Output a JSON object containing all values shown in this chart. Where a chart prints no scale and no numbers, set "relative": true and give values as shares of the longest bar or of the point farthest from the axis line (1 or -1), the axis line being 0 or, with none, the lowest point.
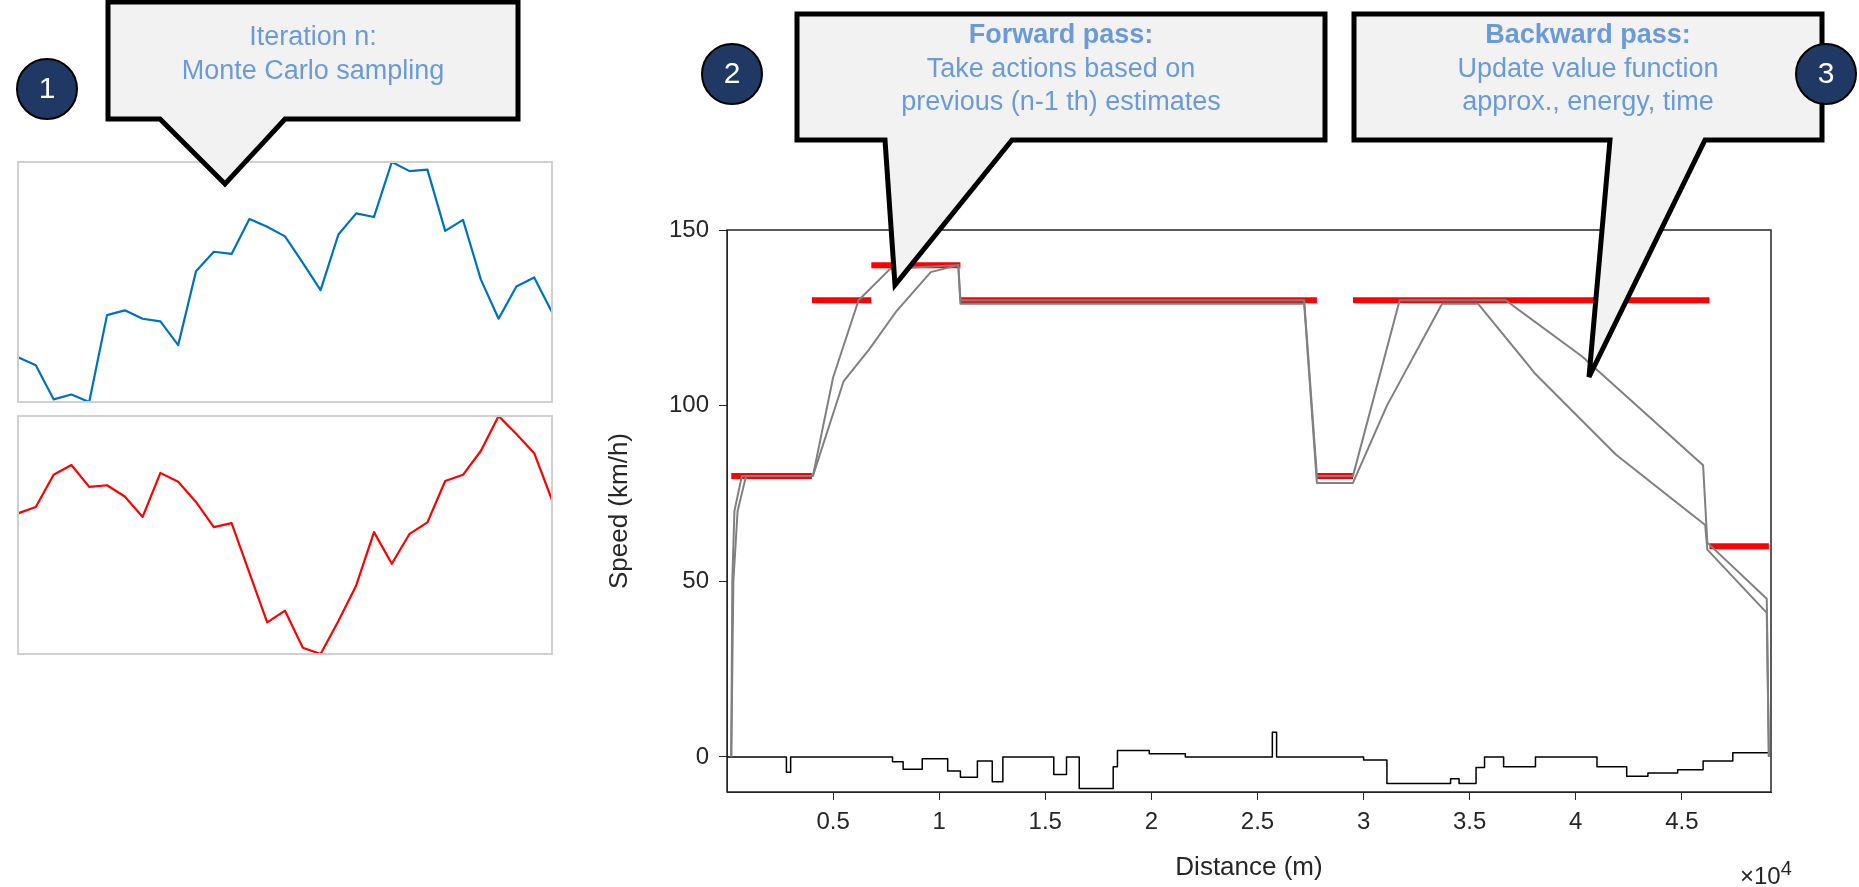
{
  "chart_data": [
    {
      "type": "line",
      "relative": true,
      "tick_labels": false,
      "grid": false,
      "categories": [
        null,
        null,
        null,
        null,
        null,
        null,
        null,
        null,
        null,
        null,
        null,
        null,
        null,
        null,
        null,
        null,
        null,
        null,
        null,
        null,
        null,
        null,
        null,
        null,
        null,
        null,
        null,
        null,
        null,
        null,
        null
      ],
      "annotations": [
        "1",
        "Iteration n:",
        "Monte Carlo sampling"
      ],
      "series": [
        {
          "color": "#0072bd",
          "values": [
            0.186,
            0.153,
            0.011,
            0.031,
            0,
            0.362,
            0.382,
            0.347,
            0.336,
            0.237,
            0.545,
            0.626,
            0.617,
            0.763,
            0.73,
            0.69,
            0.58,
            0.466,
            0.698,
            0.786,
            0.771,
            1,
            0.962,
            0.968,
            0.713,
            0.759,
            0.511,
            0.347,
            0.481,
            0.519,
            0.374
          ]
        }
      ]
    },
    {
      "type": "line",
      "relative": true,
      "tick_labels": false,
      "grid": false,
      "categories": [
        null,
        null,
        null,
        null,
        null,
        null,
        null,
        null,
        null,
        null,
        null,
        null,
        null,
        null,
        null,
        null,
        null,
        null,
        null,
        null,
        null,
        null,
        null,
        null,
        null,
        null,
        null,
        null,
        null,
        null,
        null
      ],
      "series": [
        {
          "color": "#ff0000",
          "values": [
            0.591,
            0.618,
            0.753,
            0.794,
            0.702,
            0.709,
            0.662,
            0.576,
            0.761,
            0.724,
            0.639,
            0.533,
            0.55,
            0.341,
            0.133,
            0.182,
            0.026,
            0,
            0.139,
            0.288,
            0.512,
            0.379,
            0.505,
            0.553,
            0.727,
            0.753,
            0.853,
            1,
            0.924,
            0.844,
            0.647
          ]
        }
      ]
    },
    {
      "type": "line",
      "xlabel": "Distance (m)",
      "ylabel": "Speed (km/h)",
      "xlim": [
        0,
        4.92
      ],
      "ylim": [
        -10,
        150
      ],
      "xticks": [
        0.5,
        1,
        1.5,
        2,
        2.5,
        3,
        3.5,
        4,
        4.5
      ],
      "yticks": [
        0,
        50,
        100,
        150
      ],
      "grid": false,
      "annotations": [
        "2",
        "Forward pass:",
        "Take actions based on previous (n-1 th) estimates",
        "3",
        "Backward pass:",
        "Update value function approx., energy, time",
        "×10$^{4}$"
      ],
      "series": [
        {
          "type": "line",
          "color": "#808080",
          "x": [
            0.02,
            0.025,
            0.035,
            0.07,
            0.405,
            0.5,
            0.62,
            0.77,
            1.09,
            1.1,
            2.72,
            2.78,
            2.95,
            3.17,
            3.67,
            4.03,
            4.6,
            4.62,
            4.9,
            4.91
          ],
          "values": [
            0,
            50,
            70,
            80,
            80,
            108,
            130,
            139,
            140,
            130,
            130,
            80,
            80,
            130,
            130,
            114,
            83,
            61,
            45,
            0
          ]
        },
        {
          "type": "line",
          "color": "#808080",
          "x": [
            0.02,
            0.03,
            0.05,
            0.09,
            0.405,
            0.55,
            0.67,
            0.8,
            0.96,
            1.09,
            1.1,
            2.72,
            2.78,
            2.95,
            3.11,
            3.37,
            3.54,
            3.81,
            4.19,
            4.61,
            4.62,
            4.9,
            4.91
          ],
          "values": [
            0,
            50,
            70,
            80,
            80,
            107,
            116,
            127,
            138,
            140,
            129,
            129,
            78,
            78,
            100,
            129,
            129,
            109,
            86,
            66,
            59,
            41,
            0
          ]
        },
        {
          "type": "line",
          "color": "#ff0000",
          "x": [
            0.02,
            0.4
          ],
          "values": [
            80,
            80
          ]
        },
        {
          "type": "line",
          "color": "#ff0000",
          "x": [
            0.4,
            0.68
          ],
          "values": [
            130,
            130
          ]
        },
        {
          "type": "line",
          "color": "#ff0000",
          "x": [
            0.68,
            1.1
          ],
          "values": [
            140,
            140
          ]
        },
        {
          "type": "line",
          "color": "#ff0000",
          "x": [
            1.1,
            2.78
          ],
          "values": [
            130,
            130
          ]
        },
        {
          "type": "line",
          "color": "#ff0000",
          "x": [
            2.78,
            2.95
          ],
          "values": [
            80,
            80
          ]
        },
        {
          "type": "line",
          "color": "#ff0000",
          "x": [
            2.95,
            4.63
          ],
          "values": [
            130,
            130
          ]
        },
        {
          "type": "line",
          "color": "#ff0000",
          "x": [
            4.63,
            4.91
          ],
          "values": [
            60,
            60
          ]
        },
        {
          "type": "step",
          "color": "#000000",
          "x": [
            0,
            0.28,
            0.3,
            0.78,
            0.83,
            0.92,
            1.04,
            1.1,
            1.18,
            1.25,
            1.3,
            1.54,
            1.6,
            1.66,
            1.82,
            1.84,
            1.99,
            2.16,
            2.57,
            2.59,
            3.0,
            3.11,
            3.41,
            3.45,
            3.53,
            3.57,
            3.66,
            3.81,
            4.1,
            4.24,
            4.34,
            4.48,
            4.6,
            4.74,
            4.91
          ],
          "values": [
            0,
            -4.4,
            0,
            -1.4,
            -3.5,
            -0.5,
            -4,
            -5.8,
            -1.2,
            -7.1,
            0,
            -5,
            0,
            -9,
            -2.8,
            1.8,
            0.9,
            0,
            7,
            0,
            -0.9,
            -7.6,
            -6.2,
            -7.6,
            -3,
            0,
            -2.8,
            0,
            -2.8,
            -5.5,
            -4.6,
            -3.7,
            -1.2,
            1.2,
            1.2
          ]
        }
      ]
    }
  ]
}
